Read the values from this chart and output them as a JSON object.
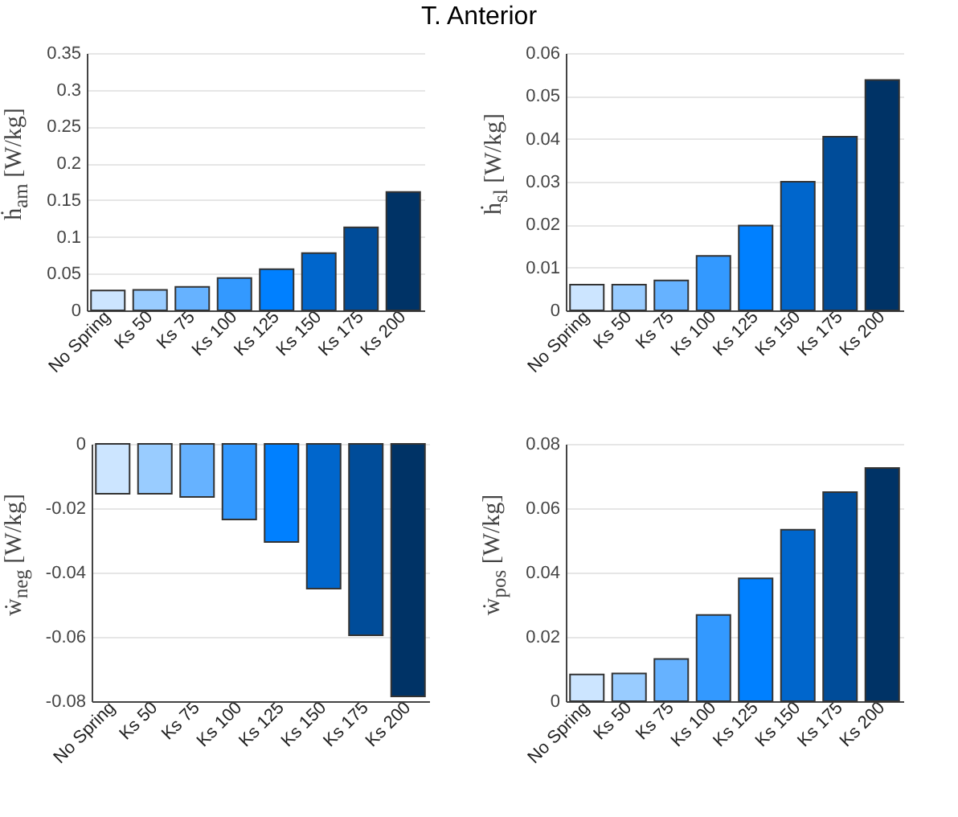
{
  "chart_data": [
    {
      "type": "bar",
      "title": "T. Anterior",
      "ylabel": "ḣ$_{am}$ [W/kg]",
      "categories": [
        "No Spring",
        "Ks 50",
        "Ks 75",
        "Ks 100",
        "Ks 125",
        "Ks 150",
        "Ks 175",
        "Ks 200"
      ],
      "values": [
        0.027,
        0.028,
        0.032,
        0.044,
        0.056,
        0.078,
        0.113,
        0.161
      ],
      "colors": [
        "#cce5ff",
        "#99ccff",
        "#66b2ff",
        "#3399ff",
        "#0080ff",
        "#0066cc",
        "#004c99",
        "#003366"
      ],
      "ylim": [
        0,
        0.35
      ],
      "yticks": [
        0,
        0.05,
        0.1,
        0.15,
        0.2,
        0.25,
        0.3,
        0.35
      ],
      "grid": "y"
    },
    {
      "type": "bar",
      "ylabel": "ḣ$_{sl}$ [W/kg]",
      "categories": [
        "No Spring",
        "Ks 50",
        "Ks 75",
        "Ks 100",
        "Ks 125",
        "Ks 150",
        "Ks 175",
        "Ks 200"
      ],
      "values": [
        0.006,
        0.006,
        0.007,
        0.0127,
        0.0198,
        0.03,
        0.0405,
        0.0537
      ],
      "colors": [
        "#cce5ff",
        "#99ccff",
        "#66b2ff",
        "#3399ff",
        "#0080ff",
        "#0066cc",
        "#004c99",
        "#003366"
      ],
      "ylim": [
        0,
        0.06
      ],
      "yticks": [
        0,
        0.01,
        0.02,
        0.03,
        0.04,
        0.05,
        0.06
      ],
      "grid": "y"
    },
    {
      "type": "bar",
      "ylabel": "ẇ$_{neg}$ [W/kg]",
      "categories": [
        "No Spring",
        "Ks 50",
        "Ks 75",
        "Ks 100",
        "Ks 125",
        "Ks 150",
        "Ks 175",
        "Ks 200"
      ],
      "values": [
        -0.0155,
        -0.0155,
        -0.0165,
        -0.0235,
        -0.0305,
        -0.045,
        -0.0595,
        -0.0785
      ],
      "colors": [
        "#cce5ff",
        "#99ccff",
        "#66b2ff",
        "#3399ff",
        "#0080ff",
        "#0066cc",
        "#004c99",
        "#003366"
      ],
      "ylim": [
        -0.08,
        0
      ],
      "yticks": [
        -0.08,
        -0.06,
        -0.04,
        -0.02,
        0
      ],
      "grid": "y"
    },
    {
      "type": "bar",
      "ylabel": "ẇ$_{pos}$ [W/kg]",
      "categories": [
        "No Spring",
        "Ks 50",
        "Ks 75",
        "Ks 100",
        "Ks 125",
        "Ks 150",
        "Ks 175",
        "Ks 200"
      ],
      "values": [
        0.0083,
        0.0086,
        0.0131,
        0.0268,
        0.0382,
        0.0533,
        0.065,
        0.0725
      ],
      "colors": [
        "#cce5ff",
        "#99ccff",
        "#66b2ff",
        "#3399ff",
        "#0080ff",
        "#0066cc",
        "#004c99",
        "#003366"
      ],
      "ylim": [
        0,
        0.08
      ],
      "yticks": [
        0,
        0.02,
        0.04,
        0.06,
        0.08
      ],
      "grid": "y"
    }
  ]
}
